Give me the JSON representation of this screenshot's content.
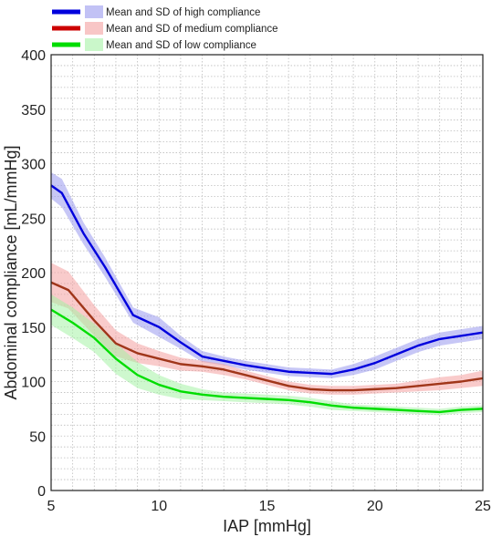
{
  "chart_data": {
    "type": "line",
    "title": "",
    "xlabel": "IAP [mmHg]",
    "ylabel": "Abdominal compliance [mL/mmHg]",
    "xlim": [
      5,
      25
    ],
    "ylim": [
      0,
      400
    ],
    "xticks": [
      5,
      10,
      15,
      20,
      25
    ],
    "yticks": [
      0,
      50,
      100,
      150,
      200,
      250,
      300,
      350,
      400
    ],
    "grid": "dotted, minor 1 mmHg x 10 mL/mmHg",
    "legend_position": "top-left",
    "series": [
      {
        "name": "Mean and SD of high compliance",
        "color": "#0000dd",
        "band_color": "#9999ee",
        "x": [
          5,
          5.5,
          6.5,
          7.5,
          8.8,
          10,
          11,
          12,
          13,
          14,
          15,
          16,
          17,
          18,
          19,
          20,
          21,
          22,
          23,
          24,
          25
        ],
        "mean": [
          280,
          273,
          236,
          205,
          161,
          150,
          136,
          123,
          119,
          115,
          112,
          109,
          108,
          107,
          111,
          117,
          125,
          133,
          139,
          142,
          145
        ],
        "sd": [
          12,
          13,
          10,
          9,
          7,
          9,
          6,
          5,
          4,
          4,
          4,
          4,
          4,
          4,
          5,
          6,
          6,
          6,
          6,
          6,
          6
        ]
      },
      {
        "name": "Mean and SD of medium compliance",
        "color": "#cc0000",
        "band_color": "#f4a0a0",
        "x": [
          5,
          5.8,
          7,
          8,
          9,
          10,
          11,
          12,
          13,
          14,
          15,
          16,
          17,
          18,
          19,
          20,
          21,
          22,
          23,
          24,
          25
        ],
        "mean": [
          191,
          184,
          156,
          135,
          126,
          121,
          116,
          114,
          111,
          106,
          101,
          96,
          93,
          92,
          92,
          93,
          94,
          96,
          98,
          100,
          103
        ],
        "sd": [
          18,
          17,
          14,
          12,
          9,
          7,
          6,
          5,
          5,
          4,
          4,
          4,
          4,
          4,
          4,
          4,
          4,
          5,
          6,
          6,
          7
        ]
      },
      {
        "name": "Mean and SD of low compliance",
        "color": "#00dd00",
        "band_color": "#a6f2a6",
        "x": [
          5,
          6,
          7,
          8,
          9,
          10,
          11,
          12,
          13,
          14,
          15,
          16,
          17,
          18,
          19,
          20,
          21,
          22,
          23,
          24,
          25
        ],
        "mean": [
          166,
          154,
          140,
          121,
          106,
          97,
          91,
          88,
          86,
          85,
          84,
          83,
          81,
          78,
          76,
          75,
          74,
          73,
          72,
          74,
          75
        ],
        "sd": [
          14,
          14,
          13,
          14,
          12,
          9,
          7,
          5,
          4,
          4,
          4,
          4,
          4,
          4,
          3,
          3,
          3,
          3,
          3,
          3,
          3
        ]
      }
    ]
  }
}
